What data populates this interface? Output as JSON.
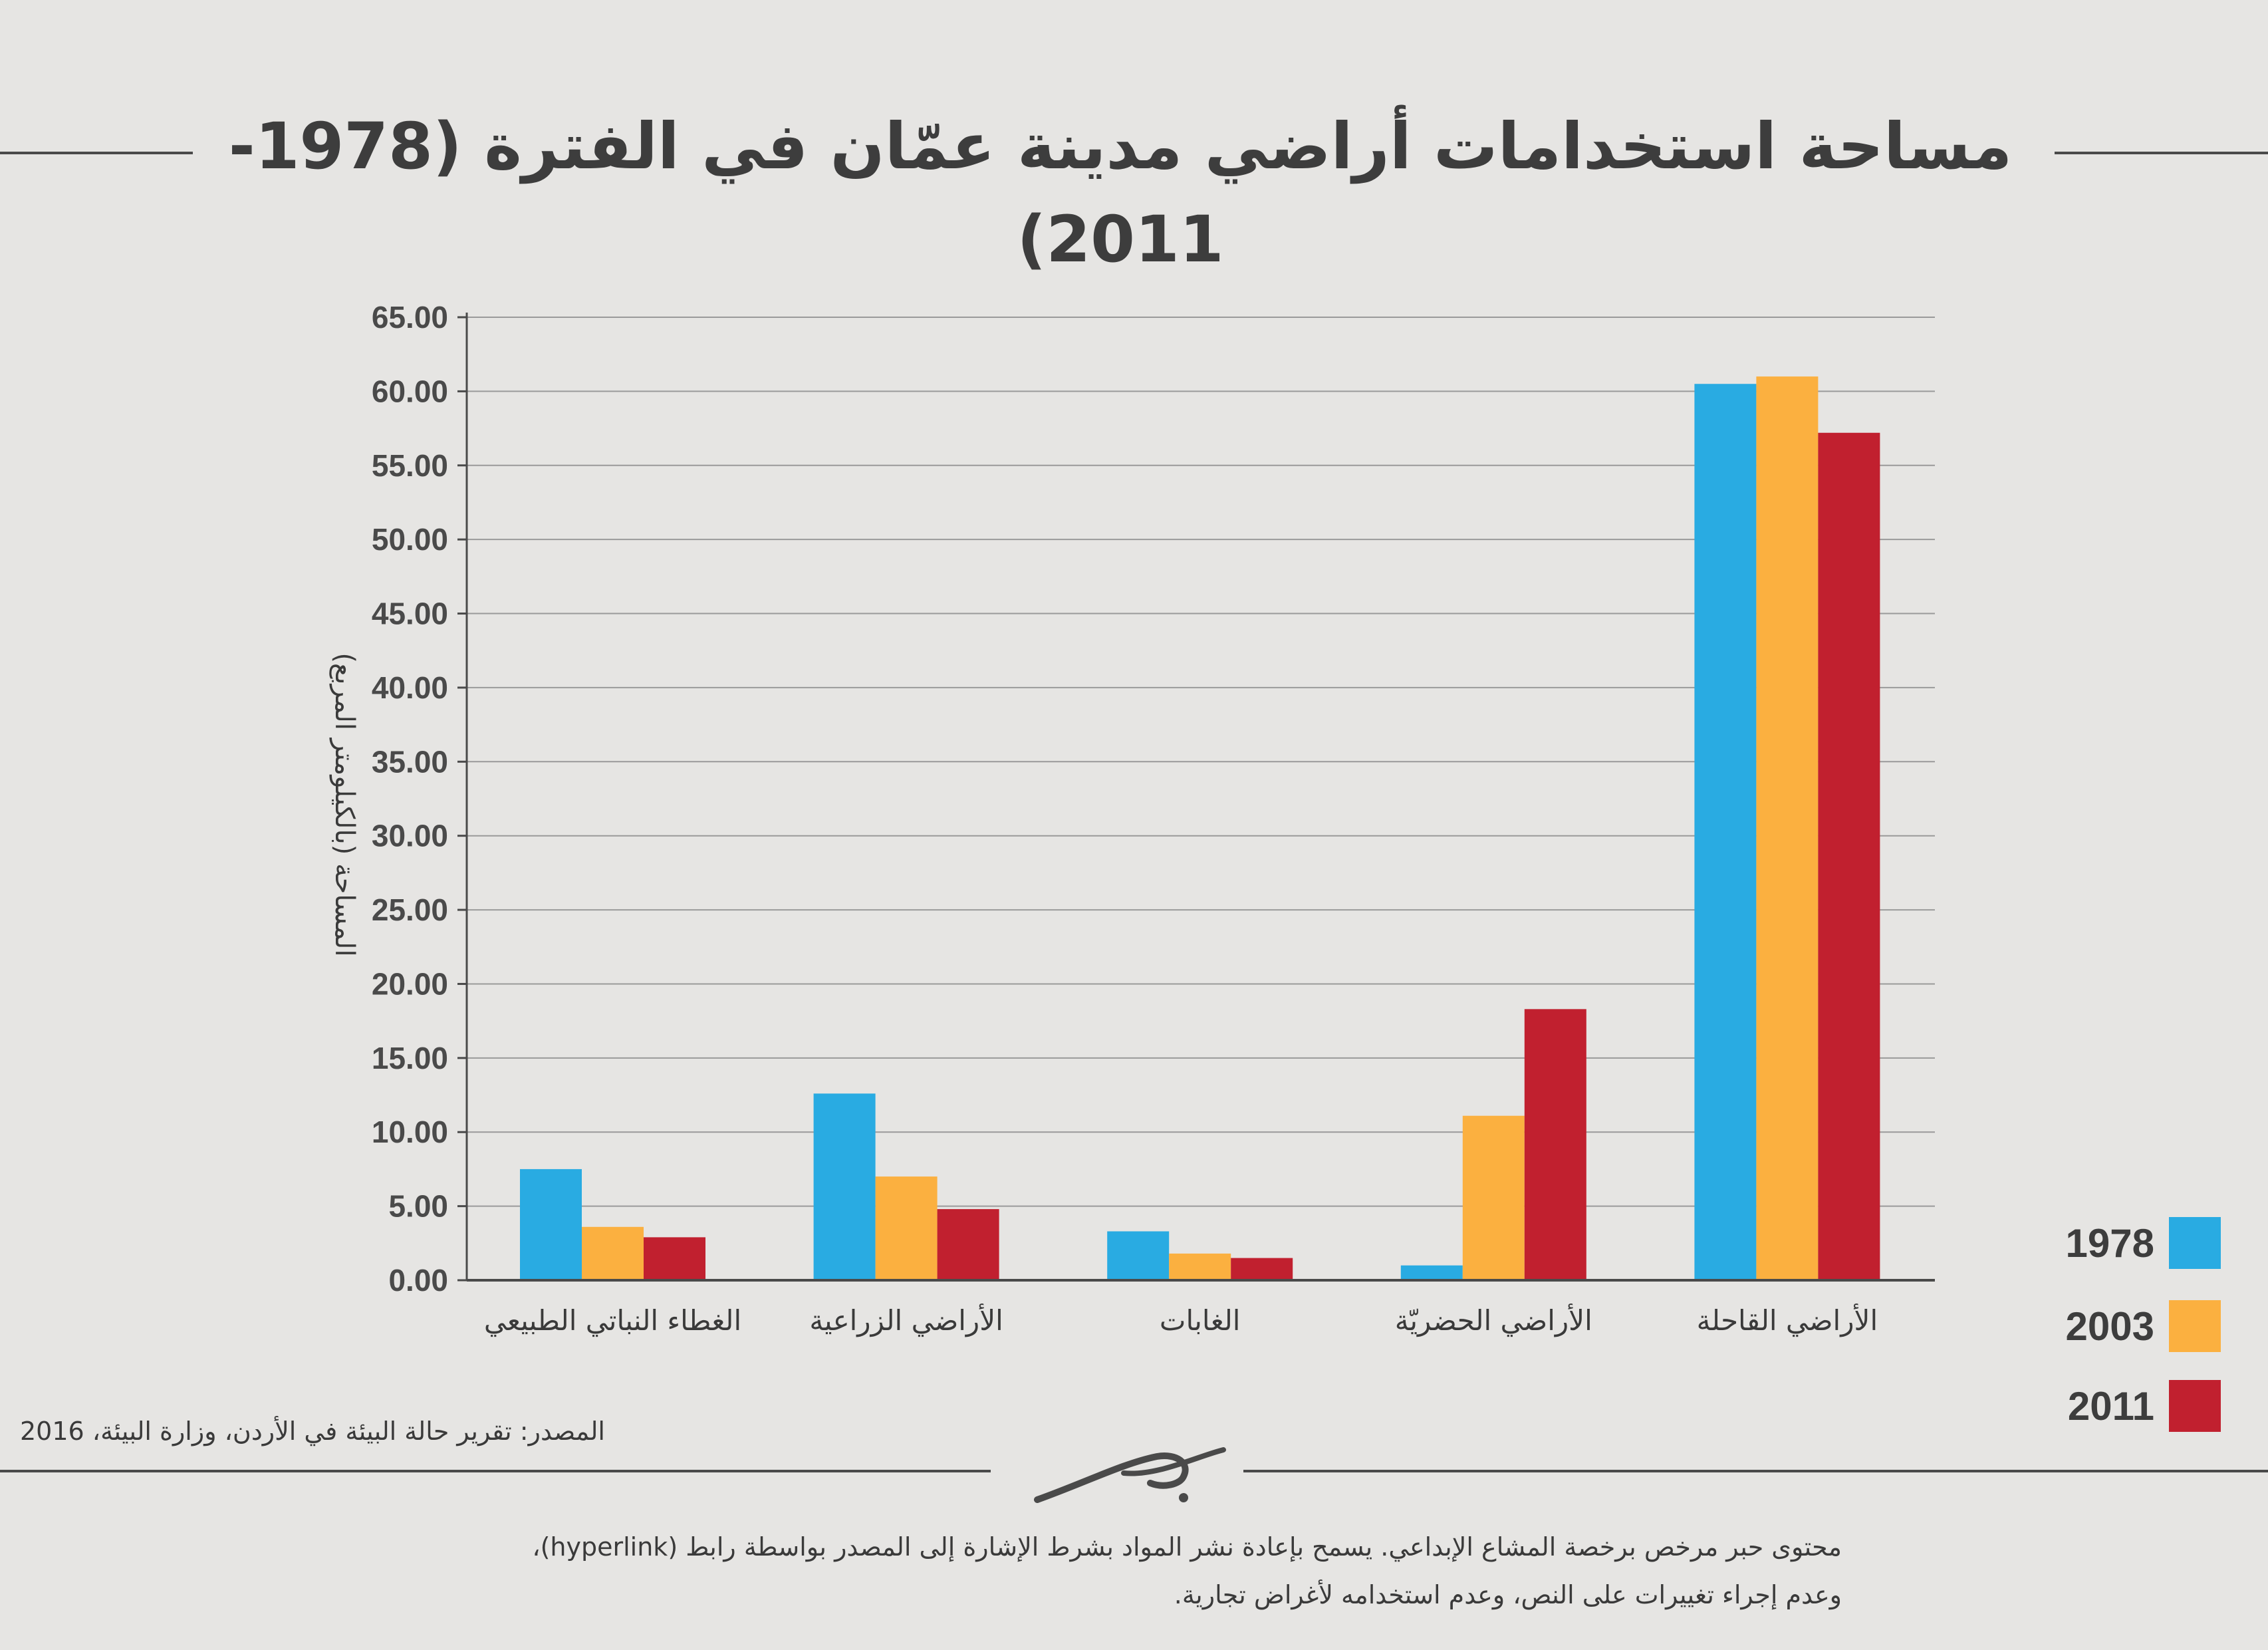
{
  "title": "مساحة استخدامات أراضي مدينة عمّان في الفترة (1978-2011)",
  "colors": {
    "y1978": "#29abe2",
    "y2003": "#fbb040",
    "y2011": "#c1202f",
    "grid": "#9a9a9a"
  },
  "legend": [
    {
      "label": "1978",
      "color": "#29abe2"
    },
    {
      "label": "2003",
      "color": "#fbb040"
    },
    {
      "label": "2011",
      "color": "#c1202f"
    }
  ],
  "chart_data": {
    "type": "bar",
    "ylabel": "المساحة (بالكيلومتر المربع)",
    "ylim": [
      0,
      65
    ],
    "yticks": [
      "0.00",
      "5.00",
      "10.00",
      "15.00",
      "20.00",
      "25.00",
      "30.00",
      "35.00",
      "40.00",
      "45.00",
      "50.00",
      "55.00",
      "60.00",
      "65.00"
    ],
    "categories": [
      "الغطاء النباتي الطبيعي",
      "الأراضي الزراعية",
      "الغابات",
      "الأراضي الحضريّة",
      "الأراضي القاحلة"
    ],
    "series": [
      {
        "name": "1978",
        "values": [
          7.5,
          12.6,
          3.3,
          1.0,
          60.5
        ]
      },
      {
        "name": "2003",
        "values": [
          3.6,
          7.0,
          1.8,
          11.1,
          61.0
        ]
      },
      {
        "name": "2011",
        "values": [
          2.9,
          4.8,
          1.5,
          18.3,
          57.2
        ]
      }
    ],
    "grid": true,
    "legend_position": "bottom-right"
  },
  "source": "المصدر: تقرير حالة البيئة في الأردن، وزارة البيئة، 2016",
  "license": {
    "line1": "محتوى حبر مرخص برخصة المشاع الإبداعي. يسمح بإعادة نشر المواد بشرط الإشارة إلى المصدر بواسطة رابط (hyperlink)،",
    "line2": "وعدم إجراء تغييرات على النص، وعدم استخدامه لأغراض تجارية."
  }
}
